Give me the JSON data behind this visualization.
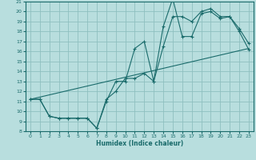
{
  "xlabel": "Humidex (Indice chaleur)",
  "background_color": "#b8dede",
  "line_color": "#1a6b6b",
  "grid_color": "#8fbfbf",
  "xlim": [
    -0.5,
    23.5
  ],
  "ylim": [
    8,
    21
  ],
  "yticks": [
    8,
    9,
    10,
    11,
    12,
    13,
    14,
    15,
    16,
    17,
    18,
    19,
    20,
    21
  ],
  "xticks": [
    0,
    1,
    2,
    3,
    4,
    5,
    6,
    7,
    8,
    9,
    10,
    11,
    12,
    13,
    14,
    15,
    16,
    17,
    18,
    19,
    20,
    21,
    22,
    23
  ],
  "line1_x": [
    0,
    1,
    2,
    3,
    4,
    5,
    6,
    7,
    8,
    9,
    10,
    11,
    12,
    13,
    14,
    15,
    16,
    17,
    18,
    19,
    20,
    21,
    22,
    23
  ],
  "line1_y": [
    11.2,
    11.2,
    9.5,
    9.3,
    9.3,
    9.3,
    9.3,
    8.3,
    11.0,
    13.0,
    13.0,
    16.3,
    17.0,
    13.0,
    18.5,
    21.3,
    17.5,
    17.5,
    19.8,
    20.0,
    19.3,
    19.5,
    18.3,
    16.8
  ],
  "line2_x": [
    0,
    1,
    2,
    3,
    4,
    5,
    6,
    7,
    8,
    9,
    10,
    11,
    12,
    13,
    14,
    15,
    16,
    17,
    18,
    19,
    20,
    21,
    22,
    23
  ],
  "line2_y": [
    11.2,
    11.2,
    9.5,
    9.3,
    9.3,
    9.3,
    9.3,
    8.3,
    11.2,
    12.0,
    13.3,
    13.3,
    13.8,
    13.0,
    16.5,
    19.5,
    19.5,
    19.0,
    20.0,
    20.3,
    19.5,
    19.5,
    18.0,
    16.2
  ],
  "line3_x": [
    0,
    23
  ],
  "line3_y": [
    11.2,
    16.3
  ]
}
